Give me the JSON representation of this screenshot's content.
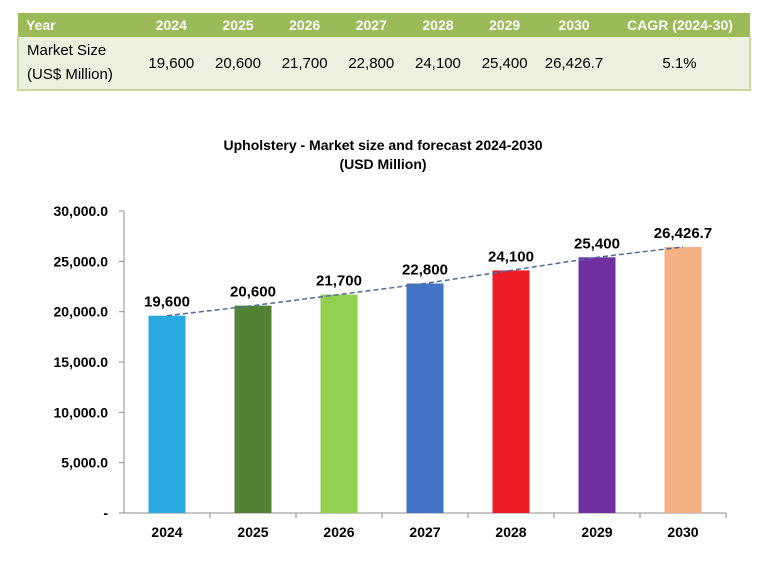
{
  "table": {
    "headers": [
      "Year",
      "2024",
      "2025",
      "2026",
      "2027",
      "2028",
      "2029",
      "2030",
      "CAGR (2024-30)"
    ],
    "row_label_line1": "Market Size",
    "row_label_line2": "(US$ Million)",
    "values": [
      "19,600",
      "20,600",
      "21,700",
      "22,800",
      "24,100",
      "25,400",
      "26,426.7",
      "5.1%"
    ]
  },
  "chart_data": {
    "type": "bar",
    "title": "Upholstery - Market size and forecast 2024-2030",
    "subtitle": "(USD Million)",
    "categories": [
      "2024",
      "2025",
      "2026",
      "2027",
      "2028",
      "2029",
      "2030"
    ],
    "values": [
      19600,
      20600,
      21700,
      22800,
      24100,
      25400,
      26426.7
    ],
    "data_labels": [
      "19,600",
      "20,600",
      "21,700",
      "22,800",
      "24,100",
      "25,400",
      "26,426.7"
    ],
    "bar_colors": [
      "#29ABE2",
      "#548235",
      "#92D050",
      "#4472C4",
      "#ED1C24",
      "#7030A0",
      "#F4B183"
    ],
    "ylim": [
      0,
      30000
    ],
    "yticks": [
      0,
      5000,
      10000,
      15000,
      20000,
      25000,
      30000
    ],
    "ytick_labels": [
      "-",
      "5,000.0",
      "10,000.0",
      "15,000.0",
      "20,000.0",
      "25,000.0",
      "30,000.0"
    ],
    "trendline": {
      "style": "dashed",
      "color": "#4F6D9A"
    },
    "grid": false,
    "legend": "none"
  }
}
